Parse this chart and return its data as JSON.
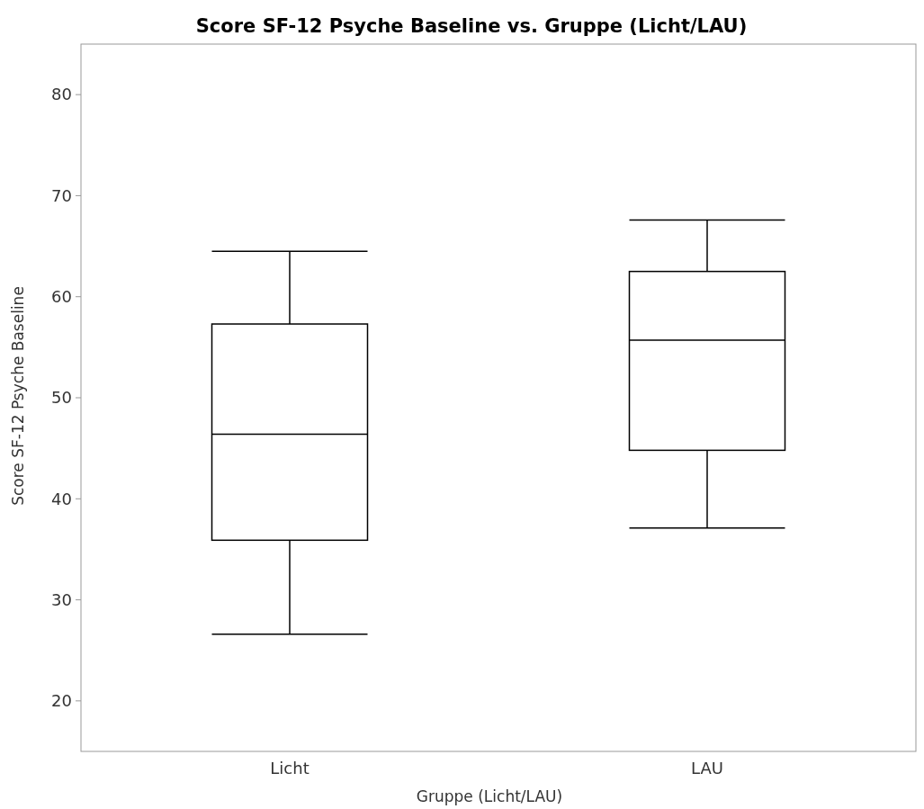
{
  "chart_data": {
    "type": "box",
    "title": "Score SF-12 Psyche Baseline vs. Gruppe (Licht/LAU)",
    "xlabel": "Gruppe (Licht/LAU)",
    "ylabel": "Score SF-12 Psyche Baseline",
    "categories": [
      "Licht",
      "LAU"
    ],
    "boxes": [
      {
        "low": 26.6,
        "q1": 35.9,
        "median": 46.4,
        "q3": 57.3,
        "high": 64.5
      },
      {
        "low": 37.1,
        "q1": 44.8,
        "median": 55.7,
        "q3": 62.5,
        "high": 67.6
      }
    ],
    "ylim": [
      15,
      85
    ],
    "yticks": [
      20,
      30,
      40,
      50,
      60,
      70,
      80
    ],
    "grid": false
  }
}
